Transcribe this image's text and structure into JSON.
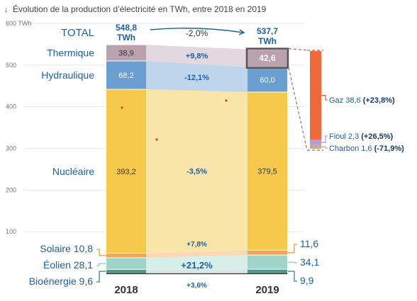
{
  "chart_data": {
    "type": "bar",
    "title": "Évolution de la production d’électricité en TWh, entre 2018 en 2019",
    "title_icon": "arrow-down-icon",
    "unit": "TWh",
    "ylim": [
      0,
      600
    ],
    "y_ticks": [
      {
        "value": 600,
        "label": "600 TWh"
      },
      {
        "value": 500,
        "label": "500"
      },
      {
        "value": 400,
        "label": "400"
      },
      {
        "value": 300,
        "label": "300"
      },
      {
        "value": 200,
        "label": "200"
      },
      {
        "value": 100,
        "label": "100"
      }
    ],
    "categories": [
      "2018",
      "2019"
    ],
    "totals": {
      "label": "TOTAL",
      "v2018": "548,8",
      "v2019": "537,7",
      "unit_label": "TWh",
      "change": "-2,0%"
    },
    "series": [
      {
        "name": "Bioénergie",
        "values": [
          9.6,
          9.9
        ],
        "label2018": "Bioénergie 9,6",
        "label2019": "9,9",
        "change": "+3,6%",
        "color": "#4e9a8a",
        "band": "#d9e8e3"
      },
      {
        "name": "Éolien",
        "values": [
          28.1,
          34.1
        ],
        "label2018": "Éolien 28,1",
        "label2019": "34,1",
        "change": "+21,2%",
        "color": "#9fd5c8",
        "band": "#d7efe9"
      },
      {
        "name": "Solaire",
        "values": [
          10.8,
          11.6
        ],
        "label2018": "Solaire 10,8",
        "label2019": "11,6",
        "change": "+7,8%",
        "color": "#f4a45a",
        "band": "#fbd9b6"
      },
      {
        "name": "Nucléaire",
        "values": [
          393.2,
          379.5
        ],
        "label2018": "393,2",
        "label2019": "379,5",
        "name_label": "Nucléaire",
        "change": "-3,5%",
        "color": "#f6c94a",
        "band": "#fbe6a9"
      },
      {
        "name": "Hydraulique",
        "values": [
          68.2,
          60.0
        ],
        "label2018": "68,2",
        "label2019": "60,0",
        "name_label": "Hydraulique",
        "change": "-12,1%",
        "color": "#6b9fd1",
        "band": "#bed5ec"
      },
      {
        "name": "Thermique",
        "values": [
          38.9,
          42.6
        ],
        "label2018": "38,9",
        "label2019": "42,6",
        "name_label": "Thermique",
        "change": "+9,8%",
        "color": "#b9a2ae",
        "band": "#e3d8de"
      }
    ],
    "thermique_breakdown": [
      {
        "name": "Gaz",
        "value": 38.6,
        "value_label": "38,6",
        "change": "(+23,8%)",
        "color": "#ee6a3b"
      },
      {
        "name": "Fioul",
        "value": 2.3,
        "value_label": "2,3",
        "change": "(+26,5%)",
        "color": "#b79bd6"
      },
      {
        "name": "Charbon",
        "value": 1.6,
        "value_label": "1,6",
        "change": "(-71,9%)",
        "color": "#c8b07a"
      }
    ],
    "grid": true,
    "colors": {
      "label_blue": "#1f5fa5",
      "axis_gray": "#777777",
      "highlight_dark": "#555555"
    }
  }
}
